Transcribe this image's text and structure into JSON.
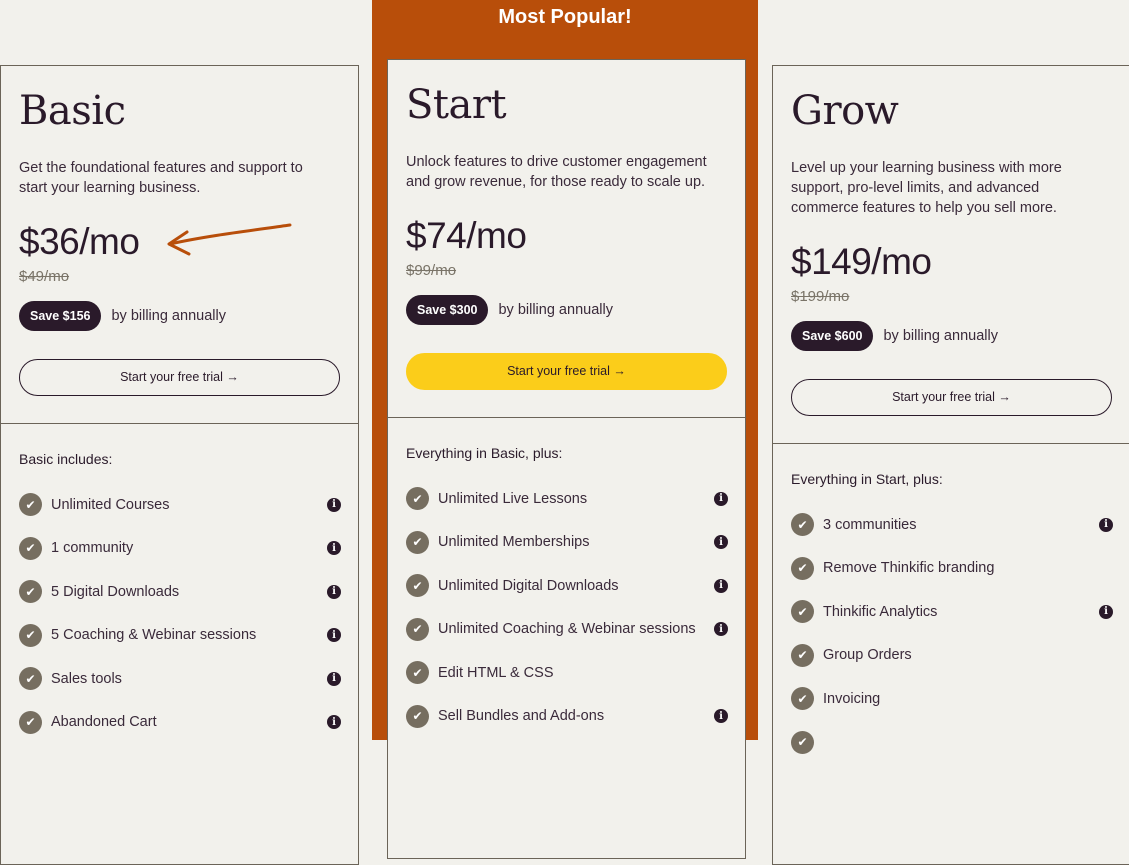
{
  "banner": "Most Popular!",
  "plans": [
    {
      "name": "Basic",
      "description": "Get the foundational features and support to start your learning business.",
      "price": "$36/mo",
      "old_price": "$49/mo",
      "save": "Save $156",
      "save_note": "by billing annually",
      "cta": "Start your free trial →",
      "includes_title": "Basic includes:",
      "features": [
        {
          "label": "Unlimited Courses",
          "info": true
        },
        {
          "label": "1 community",
          "info": true
        },
        {
          "label": "5 Digital Downloads",
          "info": true
        },
        {
          "label": "5 Coaching & Webinar sessions",
          "info": true
        },
        {
          "label": "Sales tools",
          "info": true
        },
        {
          "label": "Abandoned Cart",
          "info": true
        }
      ]
    },
    {
      "name": "Start",
      "description": "Unlock features to drive customer engagement and grow revenue, for those ready to scale up.",
      "price": "$74/mo",
      "old_price": "$99/mo",
      "save": "Save $300",
      "save_note": "by billing annually",
      "cta": "Start your free trial →",
      "includes_title": "Everything in Basic, plus:",
      "features": [
        {
          "label": "Unlimited Live Lessons",
          "info": true
        },
        {
          "label": "Unlimited Memberships",
          "info": true
        },
        {
          "label": "Unlimited Digital Downloads",
          "info": true
        },
        {
          "label": "Unlimited Coaching & Webinar sessions",
          "info": true
        },
        {
          "label": "Edit HTML & CSS",
          "info": false
        },
        {
          "label": "Sell Bundles and Add-ons",
          "info": true
        }
      ]
    },
    {
      "name": "Grow",
      "description": "Level up your learning business with more support, pro-level limits, and advanced commerce features to help you sell more.",
      "price": "$149/mo",
      "old_price": "$199/mo",
      "save": "Save $600",
      "save_note": "by billing annually",
      "cta": "Start your free trial →",
      "includes_title": "Everything in Start, plus:",
      "features": [
        {
          "label": "3 communities",
          "info": true
        },
        {
          "label": "Remove Thinkific branding",
          "info": false
        },
        {
          "label": "Thinkific Analytics",
          "info": true
        },
        {
          "label": "Group Orders",
          "info": false
        },
        {
          "label": "Invoicing",
          "info": false
        },
        {
          "label": "",
          "info": false
        }
      ]
    }
  ],
  "colors": {
    "banner": "#b84e0a",
    "primary_cta": "#fbcd1a",
    "dark": "#2a1a2a",
    "annotation_arrow": "#b84e0a"
  }
}
